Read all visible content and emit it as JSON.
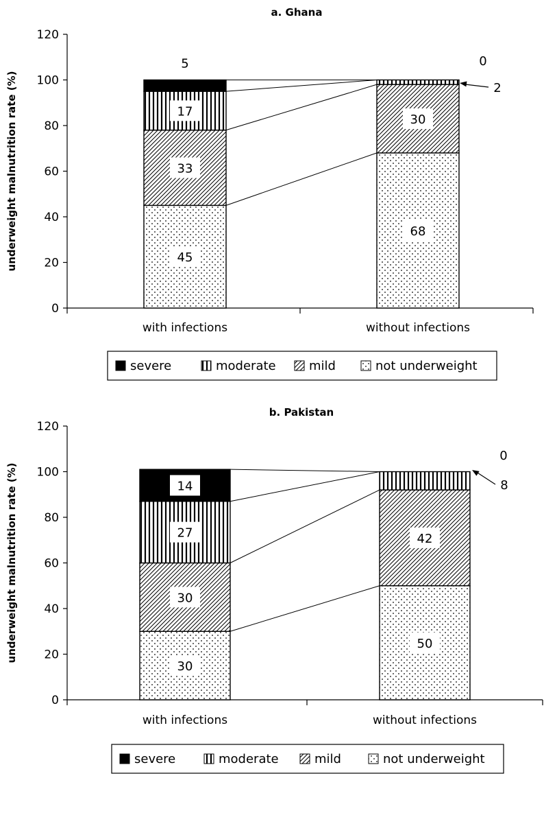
{
  "chart_data": [
    {
      "type": "bar",
      "stacked": true,
      "title": "a. Ghana",
      "ylabel": "underweight malnutrition rate (%)",
      "ylim": [
        0,
        120
      ],
      "yticks": [
        0,
        20,
        40,
        60,
        80,
        100,
        120
      ],
      "categories": [
        "with infections",
        "without infections"
      ],
      "series": [
        {
          "name": "not underweight",
          "values": [
            45,
            68
          ],
          "labels": [
            "45",
            "68"
          ]
        },
        {
          "name": "mild",
          "values": [
            33,
            30
          ],
          "labels": [
            "33",
            "30"
          ]
        },
        {
          "name": "moderate",
          "values": [
            17,
            2
          ],
          "labels": [
            "17",
            "2"
          ]
        },
        {
          "name": "severe",
          "values": [
            5,
            0
          ],
          "labels": [
            "5",
            "0"
          ]
        }
      ],
      "legend": [
        "severe",
        "moderate",
        "mild",
        "not underweight"
      ]
    },
    {
      "type": "bar",
      "stacked": true,
      "title": "b. Pakistan",
      "ylabel": "underweight malnutrition rate (%)",
      "ylim": [
        0,
        120
      ],
      "yticks": [
        0,
        20,
        40,
        60,
        80,
        100,
        120
      ],
      "categories": [
        "with infections",
        "without infections"
      ],
      "series": [
        {
          "name": "not underweight",
          "values": [
            30,
            50
          ],
          "labels": [
            "30",
            "50"
          ]
        },
        {
          "name": "mild",
          "values": [
            30,
            42
          ],
          "labels": [
            "30",
            "42"
          ]
        },
        {
          "name": "moderate",
          "values": [
            27,
            8
          ],
          "labels": [
            "27",
            "8"
          ]
        },
        {
          "name": "severe",
          "values": [
            14,
            0
          ],
          "labels": [
            "14",
            "0"
          ]
        }
      ],
      "legend": [
        "severe",
        "moderate",
        "mild",
        "not underweight"
      ]
    }
  ]
}
